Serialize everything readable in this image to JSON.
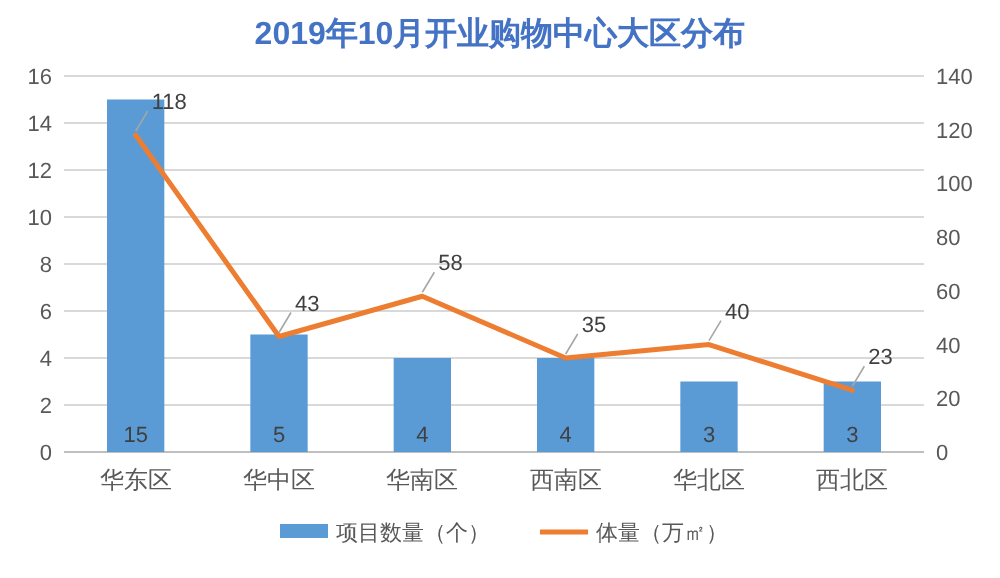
{
  "chart_data": {
    "type": "bar",
    "title": "2019年10月开业购物中心大区分布",
    "categories": [
      "华东区",
      "华中区",
      "华南区",
      "西南区",
      "华北区",
      "西北区"
    ],
    "series": [
      {
        "name": "项目数量（个）",
        "color": "#5b9bd5",
        "values": [
          15,
          5,
          4,
          4,
          3,
          3
        ]
      },
      {
        "name": "体量（万㎡）",
        "type": "line",
        "axis": "y2",
        "color": "#ed7d31",
        "values": [
          118,
          43,
          58,
          35,
          40,
          23
        ]
      }
    ],
    "ylim": [
      0,
      16
    ],
    "yticks": [
      0,
      2,
      4,
      6,
      8,
      10,
      12,
      14,
      16
    ],
    "y2lim": [
      0,
      140
    ],
    "y2ticks": [
      0,
      20,
      40,
      60,
      80,
      100,
      120,
      140
    ],
    "grid": "y",
    "legend": "bottom",
    "data_labels": true,
    "marker": "none"
  }
}
